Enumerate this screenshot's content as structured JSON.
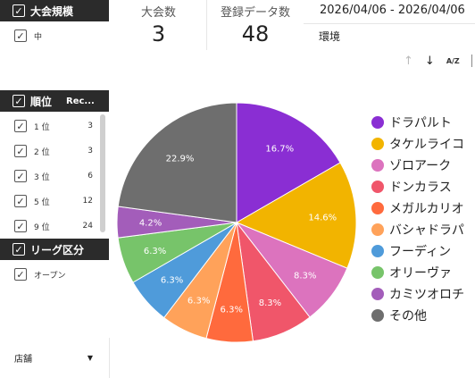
{
  "filters": {
    "scale_header": "大会規模",
    "scale_items": [
      {
        "label": "中"
      }
    ],
    "rank_header": "順位",
    "rank_col2": "Rec...",
    "rank_rows": [
      {
        "label": "1 位",
        "count": "3"
      },
      {
        "label": "2 位",
        "count": "3"
      },
      {
        "label": "3 位",
        "count": "6"
      },
      {
        "label": "5 位",
        "count": "12"
      },
      {
        "label": "9 位",
        "count": "24"
      }
    ],
    "league_header": "リーグ区分",
    "league_items": [
      {
        "label": "オープン"
      }
    ],
    "store_dropdown": "店舗"
  },
  "scorecards": {
    "tournaments_label": "大会数",
    "tournaments_value": "3",
    "records_label": "登録データ数",
    "records_value": "48"
  },
  "date_range": "2026/04/06 - 2026/04/06",
  "environment_label": "環境",
  "toolbar": {
    "sort_up": "↑",
    "sort_down": "↓",
    "sort_az": "A/Z"
  },
  "chart_data": {
    "type": "pie",
    "slices": [
      {
        "name": "ドラパルト",
        "value": 16.7,
        "label": "16.7%",
        "color": "#8a2ed3"
      },
      {
        "name": "タケルライコ",
        "value": 14.6,
        "label": "14.6%",
        "color": "#f2b400"
      },
      {
        "name": "ゾロアーク",
        "value": 8.3,
        "label": "8.3%",
        "color": "#dc73be"
      },
      {
        "name": "ドンカラス",
        "value": 8.3,
        "label": "8.3%",
        "color": "#f0566a"
      },
      {
        "name": "メガルカリオ",
        "value": 6.3,
        "label": "6.3%",
        "color": "#ff6a3d"
      },
      {
        "name": "バシャドラパ",
        "value": 6.3,
        "label": "6.3%",
        "color": "#ffa25a"
      },
      {
        "name": "フーディン",
        "value": 6.3,
        "label": "6.3%",
        "color": "#4f9bda"
      },
      {
        "name": "オリーヴァ",
        "value": 6.3,
        "label": "6.3%",
        "color": "#77c46a"
      },
      {
        "name": "カミツオロチ",
        "value": 4.2,
        "label": "4.2%",
        "color": "#a35dba"
      },
      {
        "name": "その他",
        "value": 22.9,
        "label": "22.9%",
        "color": "#6e6e6e"
      }
    ]
  }
}
